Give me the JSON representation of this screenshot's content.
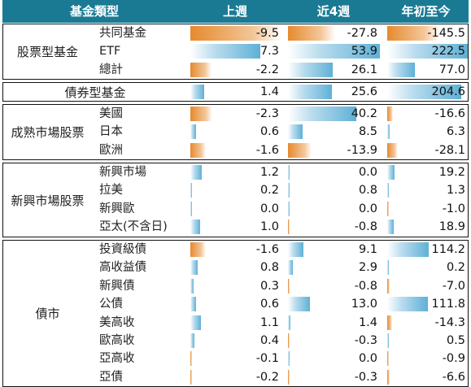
{
  "headers": [
    "基金類型",
    "上週",
    "近4週",
    "年初至今"
  ],
  "colors": {
    "header_bg": "#1b7a93",
    "positive_bar": "#5fb0d6",
    "negative_bar": "#e58a2e"
  },
  "groups": [
    {
      "label": "股票型基金",
      "rows": [
        {
          "label": "共同基金",
          "values": [
            "-9.5",
            "-27.8",
            "-145.5"
          ]
        },
        {
          "label": "ETF",
          "values": [
            "7.3",
            "53.9",
            "222.5"
          ]
        },
        {
          "label": "總計",
          "values": [
            "-2.2",
            "26.1",
            "77.0"
          ]
        }
      ]
    },
    {
      "label": "債券型基金",
      "single": true,
      "rows": [
        {
          "label": "",
          "values": [
            "1.4",
            "25.6",
            "204.6"
          ]
        }
      ]
    },
    {
      "label": "成熟市場股票",
      "rows": [
        {
          "label": "美國",
          "values": [
            "-2.3",
            "40.2",
            "-16.6"
          ]
        },
        {
          "label": "日本",
          "values": [
            "0.6",
            "8.5",
            "6.3"
          ]
        },
        {
          "label": "歐洲",
          "values": [
            "-1.6",
            "-13.9",
            "-28.1"
          ]
        }
      ]
    },
    {
      "label": "新興市場股票",
      "rows": [
        {
          "label": "新興市場",
          "values": [
            "1.2",
            "0.0",
            "19.2"
          ]
        },
        {
          "label": "拉美",
          "values": [
            "0.2",
            "0.8",
            "1.3"
          ]
        },
        {
          "label": "新興歐",
          "values": [
            "0.0",
            "0.0",
            "-1.0"
          ]
        },
        {
          "label": "亞太(不含日)",
          "values": [
            "1.0",
            "-0.8",
            "18.9"
          ]
        }
      ]
    },
    {
      "label": "債市",
      "rows": [
        {
          "label": "投資級債",
          "values": [
            "-1.6",
            "9.1",
            "114.2"
          ]
        },
        {
          "label": "高收益債",
          "values": [
            "0.8",
            "2.9",
            "0.2"
          ]
        },
        {
          "label": "新興債",
          "values": [
            "0.3",
            "-0.8",
            "-7.0"
          ]
        },
        {
          "label": "公債",
          "values": [
            "0.6",
            "13.0",
            "111.8"
          ]
        },
        {
          "label": "美高收",
          "values": [
            "1.1",
            "1.4",
            "-14.3"
          ]
        },
        {
          "label": "歐高收",
          "values": [
            "0.4",
            "-0.3",
            "0.5"
          ]
        },
        {
          "label": "亞高收",
          "values": [
            "-0.1",
            "0.0",
            "-0.9"
          ]
        },
        {
          "label": "亞債",
          "values": [
            "-0.2",
            "-0.3",
            "-6.6"
          ]
        }
      ]
    }
  ]
}
